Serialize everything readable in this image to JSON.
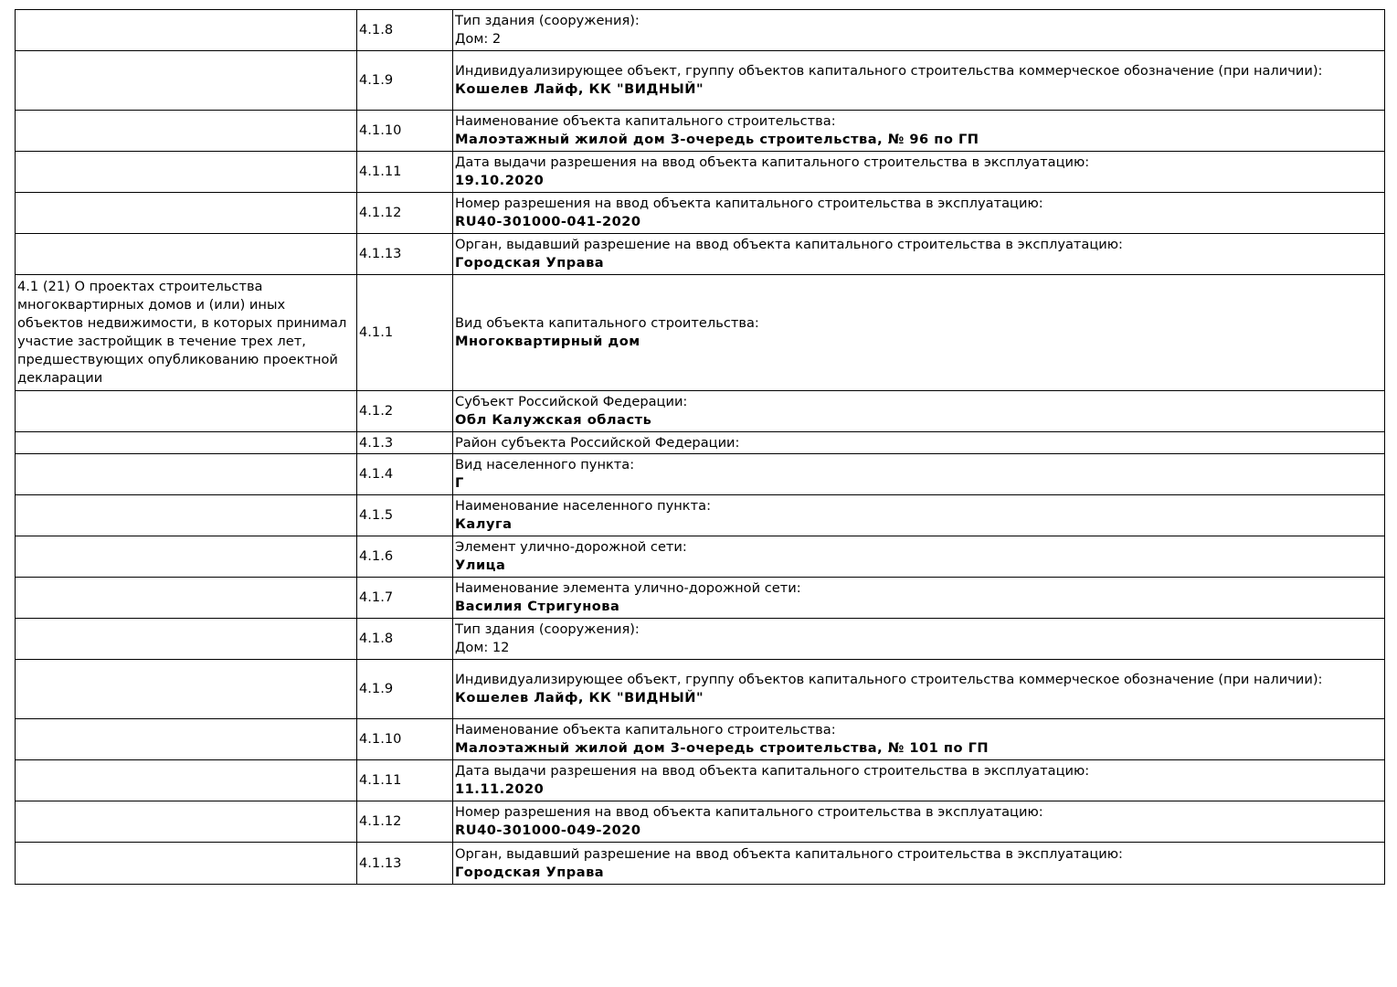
{
  "rows": [
    {
      "section": "",
      "num": "4.1.8",
      "label": "Тип здания (сооружения):",
      "value": "Дом: 2",
      "bold": false
    },
    {
      "section": "",
      "num": "4.1.9",
      "label": "Индивидуализирующее объект, группу объектов капитального строительства коммерческое обозначение (при наличии):",
      "value": "Кошелев Лайф, КК \"ВИДНЫЙ\"",
      "bold": true
    },
    {
      "section": "",
      "num": "4.1.10",
      "label": "Наименование объекта капитального строительства:",
      "value": "Малоэтажный жилой дом 3-очередь строительства, № 96 по ГП",
      "bold": true
    },
    {
      "section": "",
      "num": "4.1.11",
      "label": "Дата выдачи разрешения на ввод объекта капитального строительства в эксплуатацию:",
      "value": "19.10.2020",
      "bold": true
    },
    {
      "section": "",
      "num": "4.1.12",
      "label": "Номер разрешения на ввод объекта капитального строительства в эксплуатацию:",
      "value": "RU40-301000-041-2020",
      "bold": true
    },
    {
      "section": "",
      "num": "4.1.13",
      "label": "Орган, выдавший разрешение на ввод объекта капитального строительства в эксплуатацию:",
      "value": "Городская Управа",
      "bold": true
    },
    {
      "section": "4.1 (21) О проектах строительства многоквартирных домов и (или) иных объектов недвижимости, в которых принимал участие застройщик в течение трех лет, предшествующих опубликованию проектной декларации",
      "num": "4.1.1",
      "label": "Вид объекта капитального строительства:",
      "value": "Многоквартирный дом",
      "bold": true
    },
    {
      "section": "",
      "num": "4.1.2",
      "label": "Субъект Российской Федерации:",
      "value": "Обл Калужская область",
      "bold": true
    },
    {
      "section": "",
      "num": "4.1.3",
      "label": "Район субъекта Российской Федерации:",
      "value": "",
      "bold": true
    },
    {
      "section": "",
      "num": "4.1.4",
      "label": "Вид населенного пункта:",
      "value": "Г",
      "bold": true
    },
    {
      "section": "",
      "num": "4.1.5",
      "label": "Наименование населенного пункта:",
      "value": "Калуга",
      "bold": true
    },
    {
      "section": "",
      "num": "4.1.6",
      "label": "Элемент улично-дорожной сети:",
      "value": "Улица",
      "bold": true
    },
    {
      "section": "",
      "num": "4.1.7",
      "label": "Наименование элемента улично-дорожной сети:",
      "value": "Василия Стригунова",
      "bold": true
    },
    {
      "section": "",
      "num": "4.1.8",
      "label": "Тип здания (сооружения):",
      "value": "Дом: 12",
      "bold": false
    },
    {
      "section": "",
      "num": "4.1.9",
      "label": "Индивидуализирующее объект, группу объектов капитального строительства коммерческое обозначение (при наличии):",
      "value": "Кошелев Лайф, КК \"ВИДНЫЙ\"",
      "bold": true
    },
    {
      "section": "",
      "num": "4.1.10",
      "label": "Наименование объекта капитального строительства:",
      "value": "Малоэтажный жилой дом 3-очередь строительства, № 101 по ГП",
      "bold": true
    },
    {
      "section": "",
      "num": "4.1.11",
      "label": "Дата выдачи разрешения на ввод объекта капитального строительства в эксплуатацию:",
      "value": "11.11.2020",
      "bold": true
    },
    {
      "section": "",
      "num": "4.1.12",
      "label": "Номер разрешения на ввод объекта капитального строительства в эксплуатацию:",
      "value": "RU40-301000-049-2020",
      "bold": true
    },
    {
      "section": "",
      "num": "4.1.13",
      "label": "Орган, выдавший разрешение на ввод объекта капитального строительства в эксплуатацию:",
      "value": "Городская Управа",
      "bold": true
    }
  ]
}
